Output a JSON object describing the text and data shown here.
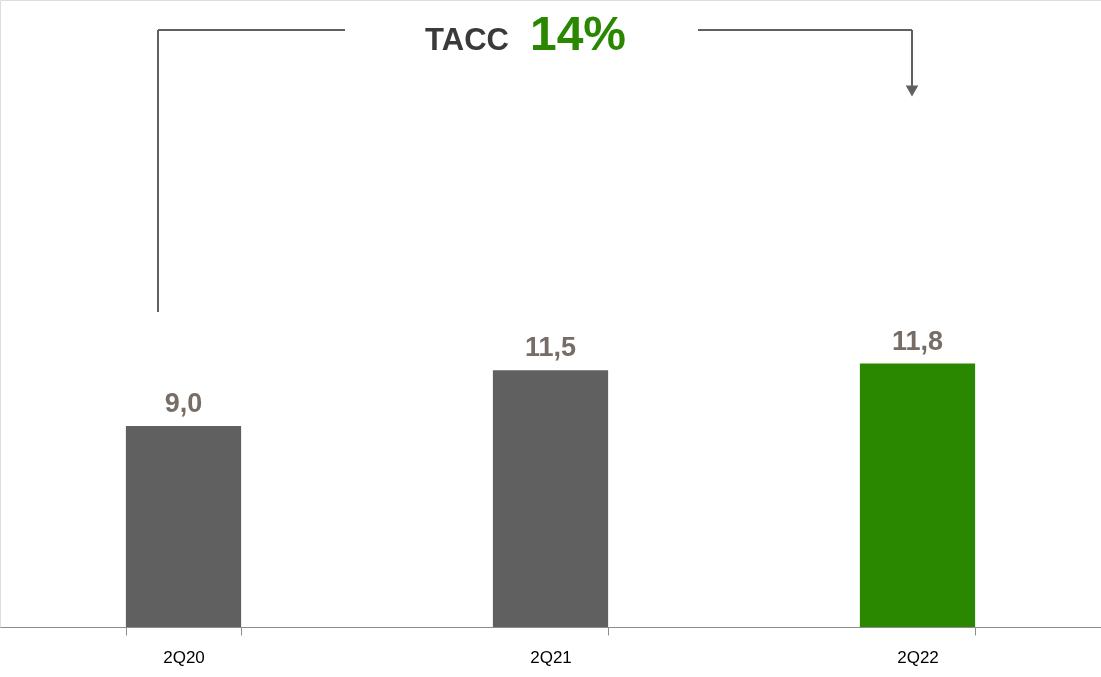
{
  "chart_data": {
    "type": "bar",
    "categories": [
      "2Q20",
      "2Q21",
      "2Q22"
    ],
    "values": [
      9.0,
      11.5,
      11.8
    ],
    "colors": [
      "#606060",
      "#606060",
      "#2a8700"
    ],
    "value_labels": [
      "9,0",
      "11,5",
      "11,8"
    ],
    "annotations": [
      "TACC",
      "14%"
    ],
    "grid": false
  }
}
